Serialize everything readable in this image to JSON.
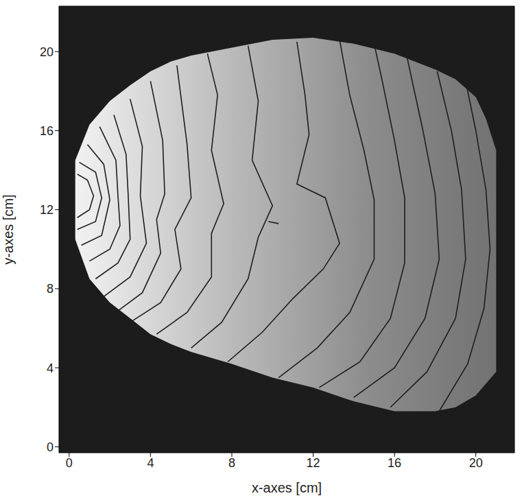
{
  "chart_data": {
    "type": "contour",
    "xlabel": "x-axes [cm]",
    "ylabel": "y-axes [cm]",
    "xlim": [
      -0.5,
      21.9
    ],
    "ylim": [
      -0.3,
      22.3
    ],
    "xticks": [
      0,
      4,
      8,
      12,
      16,
      20
    ],
    "yticks": [
      0,
      4,
      8,
      12,
      16,
      20
    ],
    "color": "#1e1e1e",
    "region": {
      "x": [
        0.3,
        1,
        2,
        3,
        4,
        5,
        6,
        8,
        10,
        12,
        14,
        16,
        18,
        19,
        20,
        20.5,
        21
      ],
      "y_lower": [
        10.5,
        8.5,
        7.3,
        6.5,
        5.7,
        5.2,
        4.8,
        4.2,
        3.5,
        3.0,
        2.3,
        1.8,
        1.8,
        2.0,
        2.6,
        3.2,
        3.8
      ],
      "y_upper": [
        14.5,
        16.3,
        17.5,
        18.3,
        19.0,
        19.5,
        19.8,
        20.2,
        20.6,
        20.7,
        20.4,
        19.9,
        19.1,
        18.6,
        17.7,
        16.6,
        15.0
      ]
    },
    "contours": [
      {
        "x": [
          0.4,
          1.0,
          1.2,
          0.9,
          0.4
        ],
        "y": [
          11.6,
          12.0,
          12.7,
          13.5,
          13.8
        ]
      },
      {
        "x": [
          0.4,
          1.3,
          1.6,
          1.3,
          0.5
        ],
        "y": [
          11.0,
          11.4,
          12.6,
          13.9,
          14.4
        ]
      },
      {
        "x": [
          0.6,
          1.6,
          2.0,
          1.7,
          0.9
        ],
        "y": [
          10.2,
          10.7,
          12.5,
          14.3,
          15.3
        ]
      },
      {
        "x": [
          1.0,
          2.0,
          2.5,
          2.4,
          2.3,
          1.5
        ],
        "y": [
          9.4,
          10.0,
          11.2,
          12.7,
          14.5,
          16.2
        ]
      },
      {
        "x": [
          1.3,
          2.4,
          3.0,
          2.9,
          2.8,
          2.2
        ],
        "y": [
          8.5,
          9.3,
          10.5,
          12.8,
          14.8,
          16.8
        ]
      },
      {
        "x": [
          1.7,
          3.0,
          3.8,
          3.5,
          3.6,
          3.0
        ],
        "y": [
          7.6,
          8.6,
          10.3,
          12.7,
          15.2,
          17.6
        ]
      },
      {
        "x": [
          2.3,
          3.6,
          4.5,
          4.3,
          4.7,
          4.6,
          4.0
        ],
        "y": [
          6.8,
          7.8,
          9.8,
          11.5,
          12.8,
          15.5,
          18.5
        ]
      },
      {
        "x": [
          3.0,
          4.5,
          5.5,
          5.2,
          6.0,
          5.8,
          5.3
        ],
        "y": [
          6.3,
          7.3,
          9.0,
          11.0,
          12.6,
          15.3,
          19.3
        ]
      },
      {
        "x": [
          4.3,
          5.8,
          7.0,
          7.0,
          7.6,
          7.0,
          7.3,
          6.8
        ],
        "y": [
          5.7,
          6.8,
          8.6,
          10.8,
          12.3,
          15.0,
          17.8,
          19.9
        ]
      },
      {
        "x": [
          6.0,
          7.5,
          8.8,
          9.3,
          10.0,
          9.0,
          9.3,
          8.8
        ],
        "y": [
          5.0,
          6.3,
          8.5,
          10.6,
          12.2,
          14.5,
          17.5,
          20.3
        ]
      },
      {
        "x": [
          7.8,
          9.5,
          11.0,
          12.5,
          13.3,
          12.6,
          11.2,
          11.8,
          11.6,
          11.2
        ],
        "y": [
          4.3,
          5.8,
          7.5,
          9.0,
          10.3,
          12.6,
          13.3,
          15.8,
          17.8,
          20.5
        ]
      },
      {
        "x": [
          10.3,
          12.2,
          13.8,
          15.0,
          15.0,
          14.5,
          13.8,
          13.3
        ],
        "y": [
          3.5,
          5.0,
          6.8,
          9.5,
          12.5,
          15.0,
          17.8,
          20.6
        ]
      },
      {
        "x": [
          12.3,
          14.3,
          15.8,
          16.5,
          16.5,
          16.0,
          15.4,
          15.0
        ],
        "y": [
          3.0,
          4.3,
          6.5,
          9.3,
          12.6,
          15.5,
          18.5,
          20.4
        ]
      },
      {
        "x": [
          14.0,
          16.0,
          17.5,
          18.2,
          18.0,
          17.4,
          16.6
        ],
        "y": [
          2.5,
          4.0,
          6.5,
          9.5,
          12.8,
          16.0,
          19.8
        ]
      },
      {
        "x": [
          15.8,
          17.6,
          19.0,
          19.5,
          19.3,
          18.8,
          18.1
        ],
        "y": [
          2.0,
          3.8,
          6.5,
          9.5,
          13.0,
          16.0,
          19.0
        ]
      },
      {
        "x": [
          18.2,
          19.6,
          20.4,
          20.7,
          20.5,
          20.0,
          19.5
        ],
        "y": [
          1.8,
          4.2,
          7.0,
          10.0,
          13.0,
          16.0,
          18.5
        ]
      },
      {
        "x": [
          9.8,
          10.3
        ],
        "y": [
          11.4,
          11.3
        ]
      }
    ]
  }
}
